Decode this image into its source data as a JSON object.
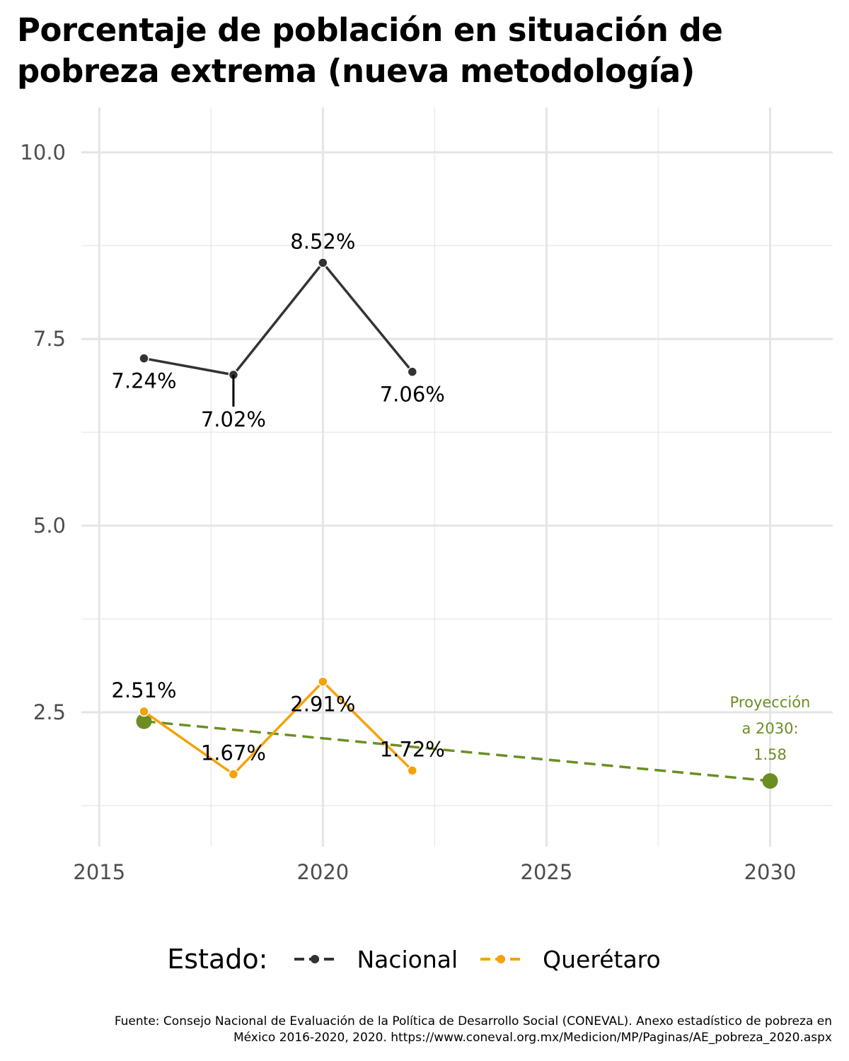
{
  "title_lines": [
    "Porcentaje de población en situación de",
    "pobreza extrema (nueva metodología)"
  ],
  "chart_data": {
    "type": "line",
    "title": "Porcentaje de población en situación de pobreza extrema (nueva metodología)",
    "xlim": [
      2014.6,
      2031.4
    ],
    "ylim": [
      0.7,
      10.6
    ],
    "x_ticks": [
      2015,
      2020,
      2025,
      2030
    ],
    "y_ticks": [
      2.5,
      5.0,
      7.5,
      10.0
    ],
    "y_tick_labels": [
      "2.5",
      "5.0",
      "7.5",
      "10.0"
    ],
    "grid": true,
    "series": [
      {
        "name": "Nacional",
        "color": "#333333",
        "x": [
          2016,
          2018,
          2020,
          2022
        ],
        "y": [
          7.24,
          7.02,
          8.52,
          7.06
        ],
        "labels": [
          "7.24%",
          "7.02%",
          "8.52%",
          "7.06%"
        ]
      },
      {
        "name": "Querétaro",
        "color": "#f5a20a",
        "x": [
          2016,
          2018,
          2020,
          2022
        ],
        "y": [
          2.51,
          1.67,
          2.91,
          1.72
        ],
        "labels": [
          "2.51%",
          "1.67%",
          "2.91%",
          "1.72%"
        ]
      }
    ],
    "projection": {
      "color": "#6b8e23",
      "x": [
        2016,
        2030
      ],
      "y": [
        2.38,
        1.58
      ],
      "annotation_lines": [
        "Proyección",
        "a 2030:",
        "1.58"
      ]
    },
    "legend_title": "Estado:",
    "legend_position": "bottom"
  },
  "caption_lines": [
    "Fuente: Consejo Nacional de Evaluación de la Política de Desarrollo Social (CONEVAL). Anexo estadístico de pobreza en",
    "México 2016-2020, 2020. https://www.coneval.org.mx/Medicion/MP/Paginas/AE_pobreza_2020.aspx"
  ]
}
